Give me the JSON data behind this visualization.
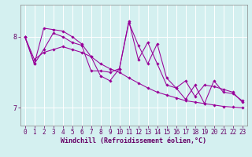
{
  "xlabel": "Windchill (Refroidissement éolien,°C)",
  "bg_color": "#d4f0f0",
  "line_color": "#990099",
  "xlim": [
    -0.5,
    23.5
  ],
  "ylim": [
    6.75,
    8.45
  ],
  "yticks": [
    7,
    8
  ],
  "xticks": [
    0,
    1,
    2,
    3,
    4,
    5,
    6,
    7,
    8,
    9,
    10,
    11,
    12,
    13,
    14,
    15,
    16,
    17,
    18,
    19,
    20,
    21,
    22,
    23
  ],
  "series": [
    [
      8.0,
      7.68,
      7.78,
      7.82,
      7.86,
      7.82,
      7.78,
      7.72,
      7.62,
      7.55,
      7.5,
      7.42,
      7.35,
      7.28,
      7.22,
      7.18,
      7.14,
      7.1,
      7.08,
      7.06,
      7.04,
      7.02,
      7.01,
      7.0
    ],
    [
      8.0,
      7.62,
      8.12,
      8.1,
      8.08,
      8.0,
      7.9,
      7.72,
      7.45,
      7.38,
      7.55,
      8.2,
      7.88,
      7.62,
      7.9,
      7.42,
      7.28,
      7.12,
      7.32,
      7.06,
      7.38,
      7.22,
      7.2,
      7.1
    ],
    [
      8.0,
      7.62,
      7.82,
      8.05,
      8.0,
      7.92,
      7.88,
      7.52,
      7.52,
      7.5,
      7.55,
      8.22,
      7.68,
      7.92,
      7.62,
      7.32,
      7.28,
      7.38,
      7.16,
      7.32,
      7.3,
      7.26,
      7.22,
      7.08
    ]
  ],
  "grid_color": "#ffffff",
  "axis_color": "#888888",
  "tick_color": "#660066",
  "label_color": "#660066",
  "tick_fontsize": 5.5,
  "xlabel_fontsize": 6,
  "marker": "D",
  "markersize": 1.8,
  "linewidth": 0.75
}
